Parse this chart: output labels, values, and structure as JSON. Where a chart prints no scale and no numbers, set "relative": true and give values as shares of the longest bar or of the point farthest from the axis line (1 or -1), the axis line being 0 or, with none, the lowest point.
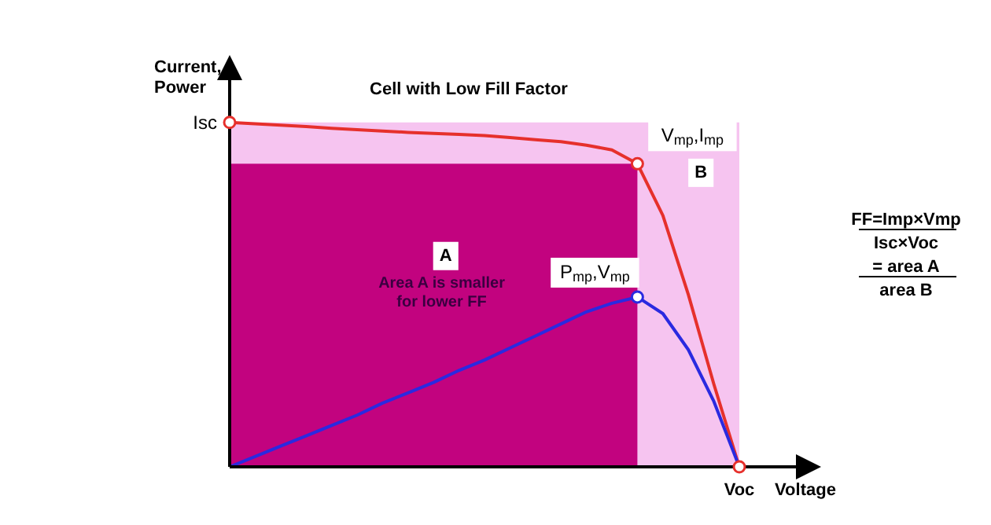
{
  "chart_data": {
    "type": "line",
    "relative": true,
    "title": "Cell with Low Fill Factor",
    "xlabel": "Voltage",
    "ylabel": "Current, Power",
    "categories": [
      null,
      null,
      null,
      null,
      null,
      null,
      null,
      null,
      null,
      null,
      null,
      null,
      null,
      null,
      null,
      null,
      null,
      null,
      null,
      null,
      null
    ],
    "series": [
      {
        "color": "#e6302c",
        "values": [
          1,
          0.996,
          0.992,
          0.988,
          0.983,
          0.979,
          0.975,
          0.971,
          0.968,
          0.965,
          0.962,
          0.956,
          0.95,
          0.944,
          0.934,
          0.92,
          0.88,
          0.73,
          0.5,
          0.24,
          0
        ]
      },
      {
        "color": "#2a2ae0",
        "values": [
          0,
          0.03,
          0.06,
          0.09,
          0.12,
          0.15,
          0.185,
          0.215,
          0.245,
          0.28,
          0.31,
          0.345,
          0.38,
          0.415,
          0.45,
          0.475,
          0.493,
          0.445,
          0.34,
          0.19,
          0
        ]
      }
    ],
    "annotations": [
      "Isc",
      "Voc",
      "V$_{mp}$,I$_{mp}$",
      "P$_{mp}$,V$_{mp}$",
      "A",
      "B",
      "Area A is smaller for lower FF",
      "FF=Imp×Vmp",
      "Isc×Voc",
      "= area A",
      "area B"
    ]
  }
}
